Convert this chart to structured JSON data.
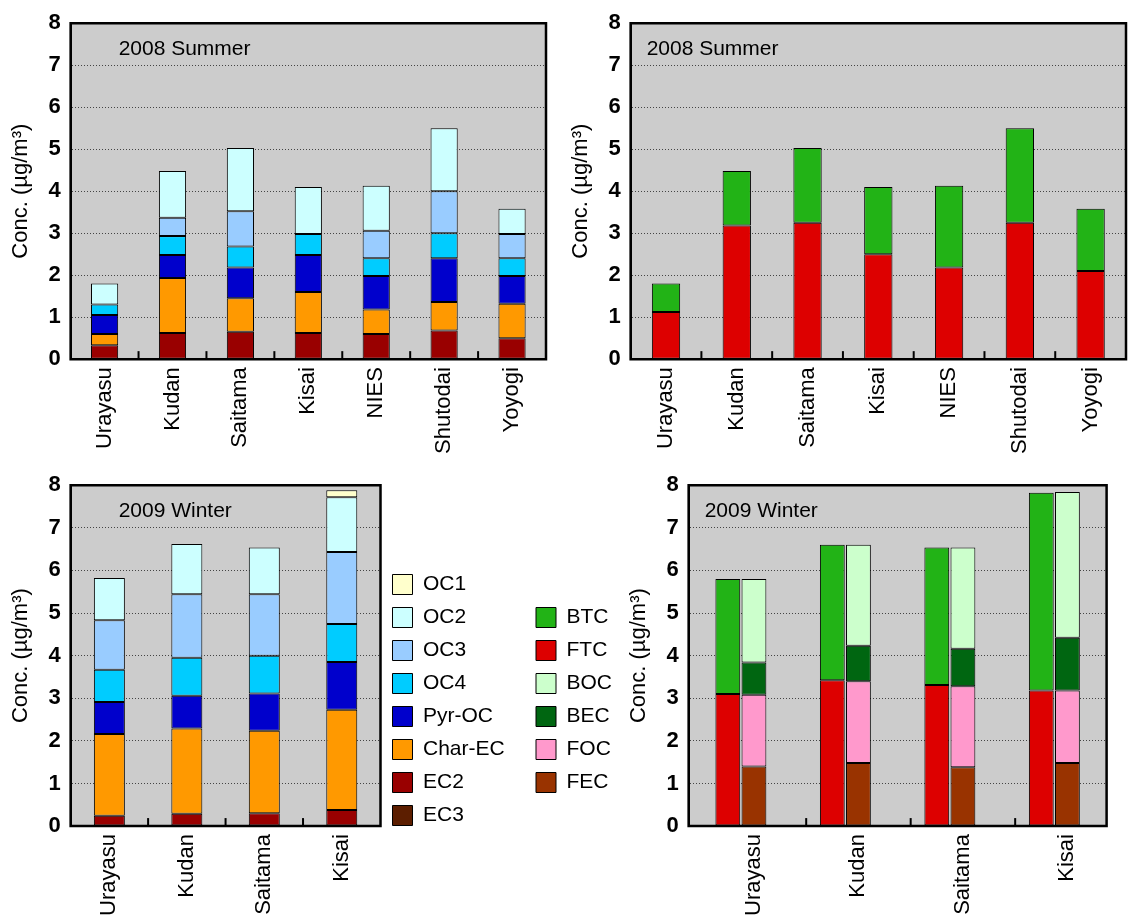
{
  "chart_data": [
    {
      "type": "bar",
      "stacked": true,
      "title": "2008 Summer",
      "ylabel": "Conc. (µg/m³)",
      "categories": [
        "Urayasu",
        "Kudan",
        "Saitama",
        "Kisai",
        "NIES",
        "Shutodai",
        "Yoyogi"
      ],
      "ylim": [
        0,
        8
      ],
      "yticks": [
        0,
        1,
        2,
        3,
        4,
        5,
        6,
        7,
        8
      ],
      "grid": "y",
      "legend": false,
      "series": [
        {
          "color": "#990000",
          "values": [
            0.33,
            0.62,
            0.65,
            0.62,
            0.6,
            0.68,
            0.5
          ]
        },
        {
          "color": "#ff9900",
          "values": [
            0.27,
            1.31,
            0.8,
            0.98,
            0.58,
            0.68,
            0.82
          ]
        },
        {
          "color": "#0000cc",
          "values": [
            0.45,
            0.55,
            0.73,
            0.88,
            0.8,
            1.04,
            0.66
          ]
        },
        {
          "color": "#00ccff",
          "values": [
            0.25,
            0.45,
            0.5,
            0.5,
            0.42,
            0.6,
            0.42
          ]
        },
        {
          "color": "#99ccff",
          "values": [
            0,
            0.44,
            0.84,
            0,
            0.66,
            1.0,
            0.58
          ]
        },
        {
          "color": "#ccffff",
          "values": [
            0.5,
            1.11,
            1.51,
            1.12,
            1.07,
            1.5,
            0.6
          ]
        }
      ]
    },
    {
      "type": "bar",
      "stacked": true,
      "title": "2008 Summer",
      "ylabel": "Conc. (µg/m³)",
      "categories": [
        "Urayasu",
        "Kudan",
        "Saitama",
        "Kisai",
        "NIES",
        "Shutodai",
        "Yoyogi"
      ],
      "ylim": [
        0,
        8
      ],
      "yticks": [
        0,
        1,
        2,
        3,
        4,
        5,
        6,
        7,
        8
      ],
      "grid": "y",
      "legend": false,
      "series": [
        {
          "color": "#dd0000",
          "values": [
            1.12,
            3.18,
            3.25,
            2.5,
            2.18,
            3.25,
            2.1
          ]
        },
        {
          "color": "#22b316",
          "values": [
            0.68,
            1.3,
            1.78,
            1.6,
            1.95,
            2.25,
            1.48
          ]
        }
      ]
    },
    {
      "type": "bar",
      "stacked": true,
      "title": "2009 Winter",
      "ylabel": "Conc. (µg/m³)",
      "categories": [
        "Urayasu",
        "Kudan",
        "Saitama",
        "Kisai"
      ],
      "ylim": [
        0,
        8
      ],
      "yticks": [
        0,
        1,
        2,
        3,
        4,
        5,
        6,
        7,
        8
      ],
      "grid": "y",
      "legend": "right",
      "series": [
        {
          "name": "EC3",
          "color": "#5c1e00",
          "values": [
            null,
            null,
            null,
            null
          ]
        },
        {
          "name": "EC2",
          "color": "#990000",
          "values": [
            0.24,
            0.29,
            0.3,
            0.38
          ]
        },
        {
          "name": "Char-EC",
          "color": "#ff9900",
          "values": [
            1.92,
            2.0,
            1.94,
            2.35
          ]
        },
        {
          "name": "Pyr-OC",
          "color": "#0000cc",
          "values": [
            0.75,
            0.77,
            0.87,
            1.12
          ]
        },
        {
          "name": "OC4",
          "color": "#00ccff",
          "values": [
            0.76,
            0.89,
            0.89,
            0.89
          ]
        },
        {
          "name": "OC3",
          "color": "#99ccff",
          "values": [
            1.16,
            1.49,
            1.44,
            1.69
          ]
        },
        {
          "name": "OC2",
          "color": "#ccffff",
          "values": [
            0.99,
            1.18,
            1.1,
            1.29
          ]
        },
        {
          "name": "OC1",
          "color": "#ffffcc",
          "values": [
            0,
            0,
            null,
            0.16
          ]
        }
      ]
    },
    {
      "type": "bar",
      "stacked": true,
      "title": "2009 Winter",
      "ylabel": "Conc. (µg/m³)",
      "categories": [
        null,
        null,
        "Urayasu",
        null,
        null,
        null,
        "Kudan",
        null,
        null,
        null,
        "Saitama",
        null,
        null,
        null,
        "Kisai",
        null
      ],
      "ylim": [
        0,
        8
      ],
      "yticks": [
        0,
        1,
        2,
        3,
        4,
        5,
        6,
        7,
        8
      ],
      "grid": "y",
      "legend": "left",
      "series": [
        {
          "name": "FEC",
          "color": "#993300",
          "values": [
            null,
            null,
            1.4,
            null,
            null,
            null,
            1.48,
            null,
            null,
            null,
            1.38,
            null,
            null,
            null,
            1.48,
            null
          ]
        },
        {
          "name": "FOC",
          "color": "#ff99cc",
          "values": [
            null,
            null,
            1.68,
            null,
            null,
            null,
            1.92,
            null,
            null,
            null,
            1.9,
            null,
            null,
            null,
            1.7,
            null
          ]
        },
        {
          "name": "BEC",
          "color": "#006611",
          "values": [
            null,
            null,
            0.76,
            null,
            null,
            null,
            0.83,
            null,
            null,
            null,
            0.88,
            null,
            null,
            null,
            1.24,
            null
          ]
        },
        {
          "name": "BOC",
          "color": "#ccffcc",
          "values": [
            null,
            null,
            1.96,
            null,
            null,
            null,
            2.37,
            null,
            null,
            null,
            2.38,
            null,
            null,
            null,
            3.42,
            null
          ]
        },
        {
          "name": "FTC",
          "color": "#dd0000",
          "values": [
            null,
            3.1,
            null,
            null,
            null,
            3.42,
            null,
            null,
            null,
            3.31,
            null,
            null,
            null,
            3.18,
            null,
            null
          ]
        },
        {
          "name": "BTC",
          "color": "#22b316",
          "values": [
            null,
            2.7,
            null,
            null,
            null,
            3.18,
            null,
            null,
            null,
            3.23,
            null,
            null,
            null,
            4.64,
            null,
            null
          ]
        }
      ]
    }
  ]
}
